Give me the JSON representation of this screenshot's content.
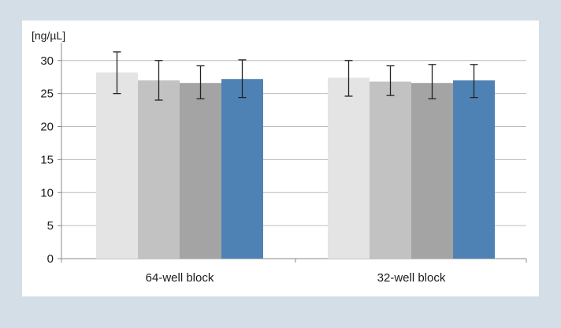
{
  "chart_data": {
    "type": "bar",
    "ylabel": "[ng/µL]",
    "ylim": [
      0,
      32
    ],
    "yticks": [
      0,
      5,
      10,
      15,
      20,
      25,
      30
    ],
    "grid": true,
    "legend": "none",
    "categories": [
      "64-well block",
      "32-well block"
    ],
    "series": [
      {
        "color": "#e4e4e4",
        "values": [
          28.2,
          27.4
        ],
        "error": [
          [
            25.0,
            31.3
          ],
          [
            24.6,
            30.0
          ]
        ]
      },
      {
        "color": "#c2c2c2",
        "values": [
          27.0,
          26.8
        ],
        "error": [
          [
            24.0,
            30.0
          ],
          [
            24.7,
            29.2
          ]
        ]
      },
      {
        "color": "#a4a4a4",
        "values": [
          26.6,
          26.6
        ],
        "error": [
          [
            24.2,
            29.2
          ],
          [
            24.2,
            29.4
          ]
        ]
      },
      {
        "color": "#4f82b4",
        "values": [
          27.2,
          27.0
        ],
        "error": [
          [
            24.4,
            30.1
          ],
          [
            24.4,
            29.4
          ]
        ]
      }
    ]
  }
}
